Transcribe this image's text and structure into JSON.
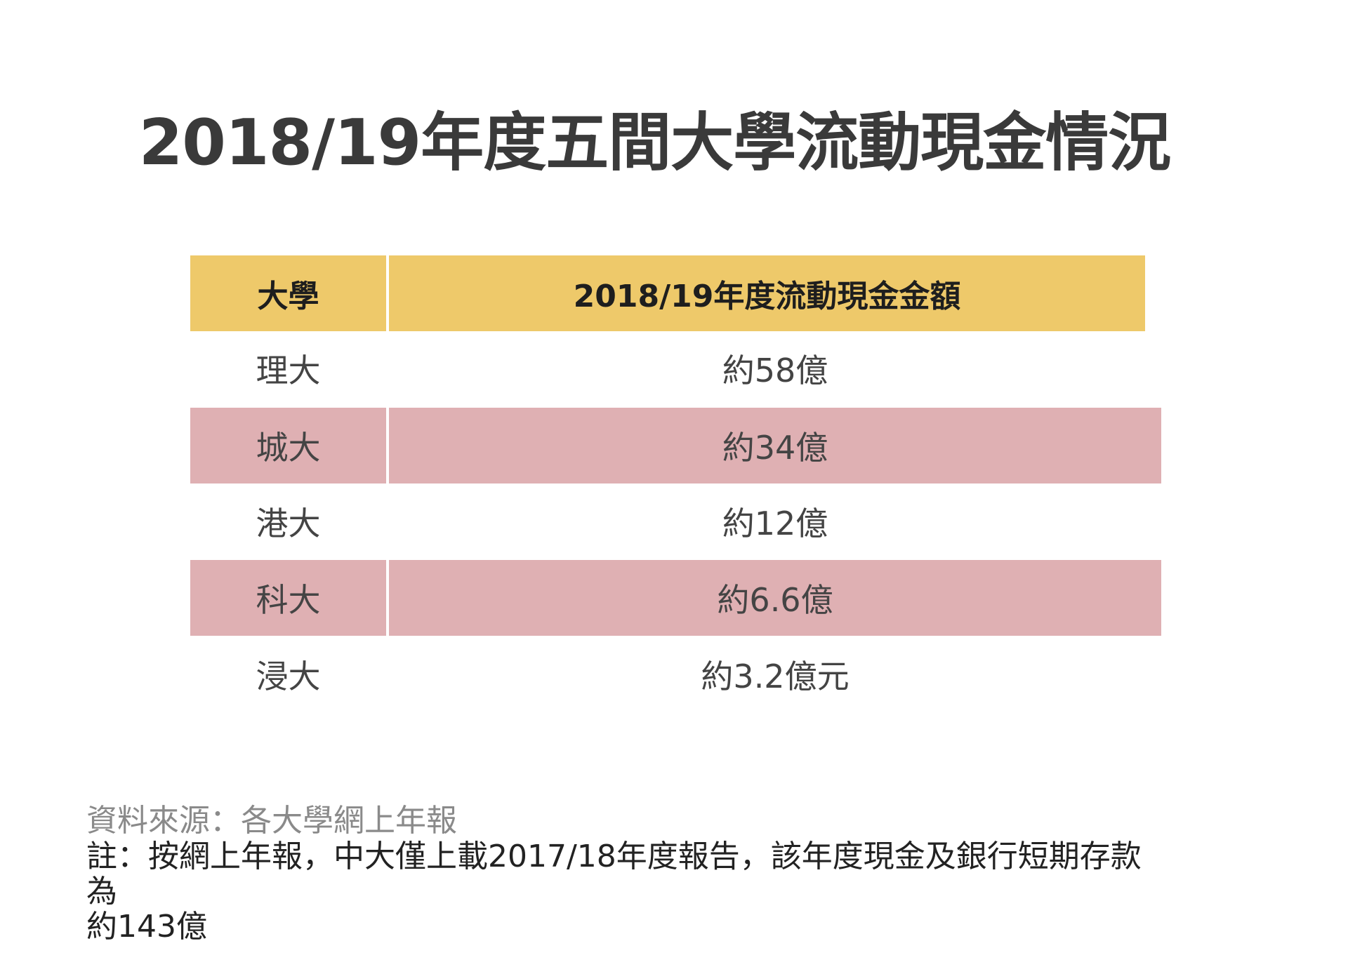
{
  "title": "2018/19年度五間大學流動現金情況",
  "table": {
    "headers": [
      "大學",
      "2018/19年度流動現金金額"
    ],
    "rows": [
      {
        "university": "理大",
        "amount": "約58億"
      },
      {
        "university": "城大",
        "amount": "約34億"
      },
      {
        "university": "港大",
        "amount": "約12億"
      },
      {
        "university": "科大",
        "amount": "約6.6億"
      },
      {
        "university": "浸大",
        "amount": "約3.2億元"
      }
    ]
  },
  "footer": {
    "source": "資料來源：各大學網上年報",
    "note_lines": [
      "註：按網上年報，中大僅上載2017/18年度報告，該年度現金及銀行短期存款",
      "為",
      "約143億"
    ]
  },
  "colors": {
    "header_bg": "#eec96a",
    "highlight_row_bg": "#dfb0b3"
  }
}
